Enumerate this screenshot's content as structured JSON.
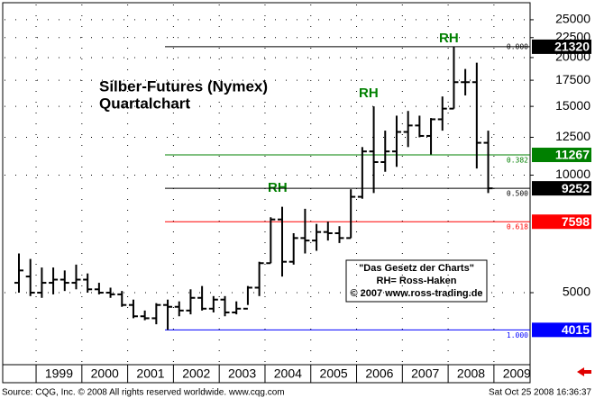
{
  "chart_data": {
    "type": "ohlc",
    "title": "Silber-Futures (Nymex)",
    "subtitle": "Quartalchart",
    "annotations": [
      "RH",
      "RH",
      "RH"
    ],
    "box_text": [
      "\"Das Gesetz der Charts\"",
      "RH= Ross-Haken",
      "© 2007 www.ross-trading.de"
    ],
    "footer_left": "Source: CQG, Inc. © 2008 All rights reserved worldwide.  www.cqg.com",
    "footer_right": "Sat Oct 25 2008 16:36:37",
    "log_scale": true,
    "grid": true,
    "color": "#000000",
    "xlim": [
      1998.31,
      2009.79
    ],
    "xticks": [
      1999,
      2000,
      2001,
      2002,
      2003,
      2004,
      2005,
      2006,
      2007,
      2008,
      2009
    ],
    "ylim": [
      3270,
      27350
    ],
    "yticks": [
      5000,
      10000,
      12500,
      15000,
      17500,
      20000,
      22500,
      25000
    ],
    "x": [
      1998.5,
      1998.75,
      1999,
      1999.25,
      1999.5,
      1999.75,
      2000,
      2000.25,
      2000.5,
      2000.75,
      2001,
      2001.25,
      2001.5,
      2001.75,
      2002,
      2002.25,
      2002.5,
      2002.75,
      2003,
      2003.25,
      2003.5,
      2003.75,
      2004,
      2004.25,
      2004.5,
      2004.75,
      2005,
      2005.25,
      2005.5,
      2005.75,
      2006,
      2006.25,
      2006.5,
      2006.75,
      2007,
      2007.25,
      2007.5,
      2007.75,
      2008,
      2008.25,
      2008.5,
      2008.75
    ],
    "open": [
      5300,
      5500,
      5000,
      5300,
      5400,
      5300,
      5400,
      5100,
      5000,
      4950,
      4650,
      4350,
      4300,
      4650,
      4600,
      4500,
      4850,
      4550,
      4800,
      4450,
      4550,
      5150,
      5950,
      7700,
      6000,
      6900,
      6800,
      7150,
      7100,
      6900,
      8800,
      11500,
      10800,
      11500,
      12900,
      13400,
      12600,
      13900,
      14800,
      17300,
      17300,
      12100
    ],
    "high": [
      6300,
      6100,
      5800,
      5800,
      5700,
      5900,
      5600,
      5300,
      5150,
      5050,
      4800,
      4500,
      4700,
      4800,
      4750,
      5100,
      5200,
      4900,
      4900,
      4750,
      5200,
      6000,
      7800,
      8300,
      7100,
      8200,
      7500,
      7600,
      7400,
      9200,
      11800,
      15000,
      13000,
      14200,
      14600,
      14200,
      14000,
      15900,
      21320,
      18700,
      19400,
      13000
    ],
    "low": [
      5000,
      4900,
      4850,
      4950,
      5050,
      5100,
      5000,
      4950,
      4850,
      4600,
      4300,
      4250,
      4150,
      4015,
      4350,
      4400,
      4500,
      4450,
      4350,
      4400,
      4650,
      4900,
      5950,
      5500,
      5900,
      6300,
      6400,
      6800,
      6700,
      6900,
      8700,
      9000,
      10200,
      10500,
      11800,
      12500,
      11300,
      13000,
      14800,
      16000,
      10400,
      9000
    ],
    "close": [
      5700,
      5000,
      5300,
      5400,
      5300,
      5400,
      5100,
      5000,
      4950,
      4650,
      4350,
      4300,
      4650,
      4600,
      4500,
      4850,
      4550,
      4800,
      4450,
      4550,
      5150,
      5950,
      7700,
      6000,
      6900,
      6800,
      7150,
      7100,
      6900,
      8800,
      11500,
      10800,
      11500,
      12900,
      13400,
      12600,
      13900,
      14800,
      17300,
      17300,
      12100,
      9252
    ],
    "levels": [
      {
        "value": 21320,
        "label": "0.000",
        "color": "#000000"
      },
      {
        "value": 11267,
        "label": "0.382",
        "color": "#008000"
      },
      {
        "value": 9252,
        "label": "0.500",
        "color": "#000000"
      },
      {
        "value": 7598,
        "label": "0.618",
        "color": "#ff0000"
      },
      {
        "value": 4015,
        "label": "1.000",
        "color": "#0000ff"
      }
    ]
  }
}
